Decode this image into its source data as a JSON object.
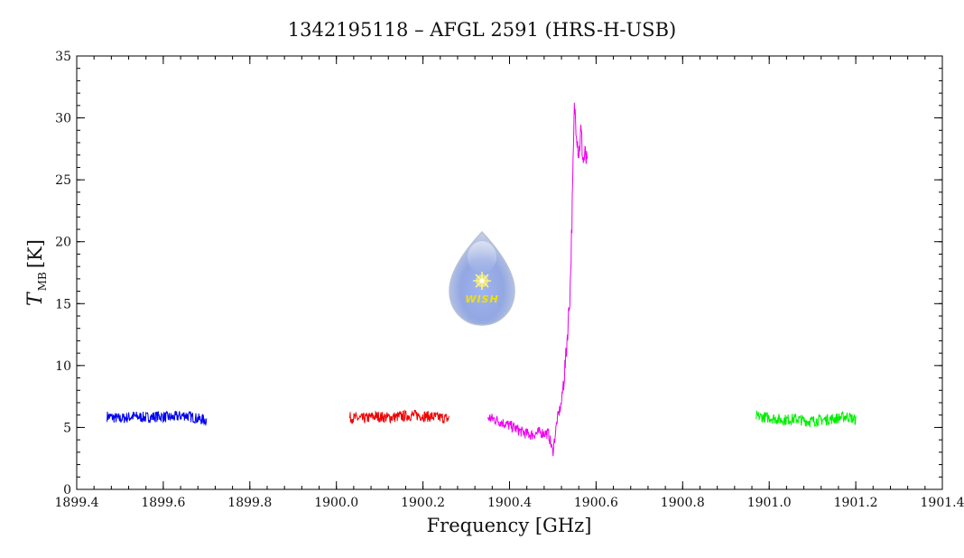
{
  "chart_data": {
    "type": "line",
    "title": "1342195118 – AFGL 2591 (HRS-H-USB)",
    "xlabel": "Frequency [GHz]",
    "ylabel": {
      "symbol": "T",
      "subscript": "MB",
      "unit": "[K]"
    },
    "xlim": [
      1899.4,
      1901.4
    ],
    "ylim": [
      0,
      35
    ],
    "xticks": [
      "1899.4",
      "1899.6",
      "1899.8",
      "1900.0",
      "1900.2",
      "1900.4",
      "1900.6",
      "1900.8",
      "1901.0",
      "1901.2",
      "1901.4"
    ],
    "yticks": [
      "0",
      "5",
      "10",
      "15",
      "20",
      "25",
      "30",
      "35"
    ],
    "grid": false,
    "series": [
      {
        "color": "#0000ee",
        "x": [
          1899.47,
          1899.5,
          1899.53,
          1899.56,
          1899.59,
          1899.62,
          1899.65,
          1899.68,
          1899.7
        ],
        "y": [
          5.9,
          5.7,
          5.9,
          5.8,
          5.9,
          5.8,
          6.0,
          5.7,
          5.6
        ]
      },
      {
        "color": "#ee0000",
        "x": [
          1900.03,
          1900.06,
          1900.09,
          1900.12,
          1900.15,
          1900.18,
          1900.21,
          1900.24,
          1900.26
        ],
        "y": [
          5.8,
          5.7,
          5.9,
          5.8,
          5.9,
          6.0,
          5.9,
          5.8,
          5.7
        ]
      },
      {
        "color": "#ee00ee",
        "x": [
          1900.35,
          1900.37,
          1900.39,
          1900.41,
          1900.43,
          1900.45,
          1900.47,
          1900.49,
          1900.5,
          1900.51,
          1900.52,
          1900.53,
          1900.54,
          1900.545,
          1900.55,
          1900.555,
          1900.56,
          1900.565,
          1900.57,
          1900.575,
          1900.58
        ],
        "y": [
          5.8,
          5.6,
          5.3,
          5.0,
          4.6,
          4.4,
          4.6,
          4.5,
          3.0,
          5.6,
          7.0,
          10.5,
          16.0,
          23.0,
          31.0,
          29.0,
          27.0,
          29.0,
          26.5,
          27.0,
          26.0
        ]
      },
      {
        "color": "#00ee00",
        "x": [
          1900.97,
          1901.0,
          1901.03,
          1901.06,
          1901.09,
          1901.12,
          1901.15,
          1901.18,
          1901.2
        ],
        "y": [
          5.9,
          5.8,
          5.6,
          5.7,
          5.5,
          5.6,
          5.7,
          5.9,
          5.6
        ]
      }
    ],
    "logo": {
      "text": "WISH"
    }
  }
}
